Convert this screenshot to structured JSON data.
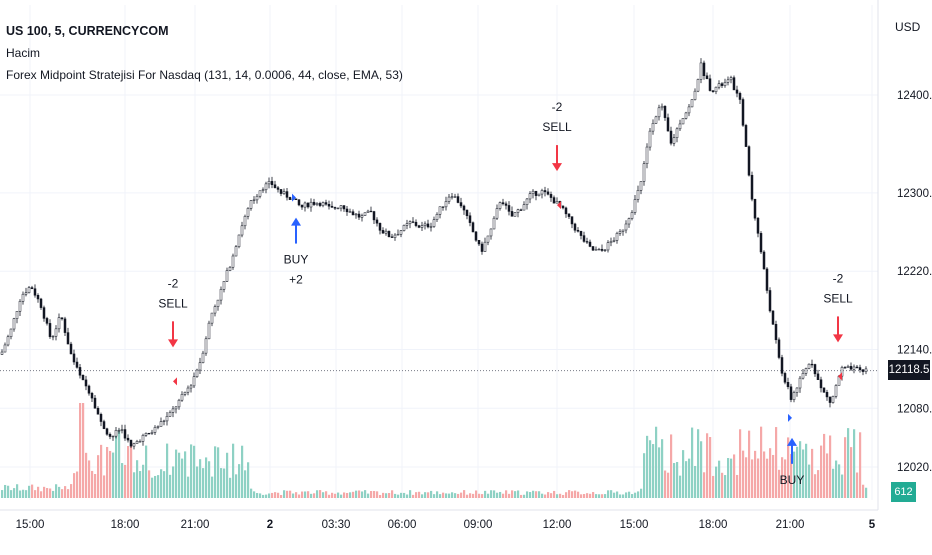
{
  "legend": {
    "symbol": "US 100, 5, CURRENCYCOM",
    "volume_label": "Hacim",
    "strategy": "Forex Midpoint Stratejisi For Nasdaq",
    "strategy_params": "(131, 14, 0.0006, 44, close, EMA, 53)"
  },
  "price_axis": {
    "currency": "USD"
  },
  "current_price": "12118.5",
  "current_volume": "612",
  "colors": {
    "buy_arrow": "#2962ff",
    "sell_arrow": "#f23645",
    "volume_up": "#8ed1c4",
    "volume_down": "#f5a8a8",
    "price_line": "#787b86",
    "candle": "#131722"
  },
  "chart_data": {
    "type": "candlestick",
    "title": "US 100, 5, CURRENCYCOM",
    "ylim": [
      11990,
      12460
    ],
    "y_ticks": [
      12020.0,
      12080.0,
      12140.0,
      12220.0,
      12300.0,
      12400.0
    ],
    "y_tick_labels": [
      "12020.0",
      "12080.0",
      "12140.0",
      "12220.0",
      "12300.0",
      "12400.0"
    ],
    "x_ticks": [
      {
        "label": "15:00",
        "bold": false
      },
      {
        "label": "18:00",
        "bold": false
      },
      {
        "label": "21:00",
        "bold": false
      },
      {
        "label": "2",
        "bold": true
      },
      {
        "label": "03:30",
        "bold": false
      },
      {
        "label": "06:00",
        "bold": false
      },
      {
        "label": "09:00",
        "bold": false
      },
      {
        "label": "12:00",
        "bold": false
      },
      {
        "label": "15:00",
        "bold": false
      },
      {
        "label": "18:00",
        "bold": false
      },
      {
        "label": "21:00",
        "bold": false
      },
      {
        "label": "5",
        "bold": true
      }
    ],
    "price_path": [
      [
        0,
        12135
      ],
      [
        10,
        12160
      ],
      [
        20,
        12195
      ],
      [
        30,
        12205
      ],
      [
        40,
        12185
      ],
      [
        50,
        12150
      ],
      [
        60,
        12175
      ],
      [
        70,
        12135
      ],
      [
        80,
        12110
      ],
      [
        90,
        12095
      ],
      [
        100,
        12065
      ],
      [
        110,
        12050
      ],
      [
        120,
        12060
      ],
      [
        130,
        12040
      ],
      [
        140,
        12050
      ],
      [
        150,
        12055
      ],
      [
        160,
        12065
      ],
      [
        170,
        12075
      ],
      [
        180,
        12090
      ],
      [
        190,
        12105
      ],
      [
        200,
        12130
      ],
      [
        210,
        12175
      ],
      [
        220,
        12200
      ],
      [
        230,
        12230
      ],
      [
        240,
        12265
      ],
      [
        250,
        12290
      ],
      [
        260,
        12305
      ],
      [
        270,
        12310
      ],
      [
        280,
        12300
      ],
      [
        290,
        12295
      ],
      [
        300,
        12285
      ],
      [
        310,
        12290
      ],
      [
        320,
        12290
      ],
      [
        330,
        12283
      ],
      [
        340,
        12288
      ],
      [
        350,
        12280
      ],
      [
        360,
        12275
      ],
      [
        370,
        12280
      ],
      [
        380,
        12262
      ],
      [
        390,
        12255
      ],
      [
        400,
        12262
      ],
      [
        410,
        12270
      ],
      [
        420,
        12265
      ],
      [
        430,
        12268
      ],
      [
        440,
        12285
      ],
      [
        450,
        12300
      ],
      [
        460,
        12288
      ],
      [
        470,
        12265
      ],
      [
        480,
        12240
      ],
      [
        490,
        12262
      ],
      [
        500,
        12295
      ],
      [
        510,
        12275
      ],
      [
        520,
        12285
      ],
      [
        530,
        12298
      ],
      [
        540,
        12302
      ],
      [
        550,
        12295
      ],
      [
        560,
        12285
      ],
      [
        570,
        12270
      ],
      [
        580,
        12255
      ],
      [
        590,
        12242
      ],
      [
        600,
        12240
      ],
      [
        610,
        12250
      ],
      [
        620,
        12260
      ],
      [
        630,
        12280
      ],
      [
        640,
        12310
      ],
      [
        650,
        12370
      ],
      [
        660,
        12390
      ],
      [
        670,
        12350
      ],
      [
        680,
        12375
      ],
      [
        690,
        12390
      ],
      [
        700,
        12430
      ],
      [
        710,
        12405
      ],
      [
        720,
        12410
      ],
      [
        730,
        12415
      ],
      [
        740,
        12390
      ],
      [
        750,
        12300
      ],
      [
        760,
        12240
      ],
      [
        770,
        12175
      ],
      [
        780,
        12120
      ],
      [
        790,
        12090
      ],
      [
        800,
        12110
      ],
      [
        810,
        12130
      ],
      [
        820,
        12100
      ],
      [
        830,
        12085
      ],
      [
        840,
        12120
      ],
      [
        850,
        12120
      ],
      [
        860,
        12118
      ],
      [
        865,
        12118
      ]
    ],
    "signals": [
      {
        "type": "sell",
        "x": 173,
        "price": 12130,
        "labels": [
          "-2",
          "SELL"
        ]
      },
      {
        "type": "buy",
        "x": 296,
        "price": 12285,
        "labels": [
          "BUY",
          "+2"
        ]
      },
      {
        "type": "sell",
        "x": 557,
        "price": 12310,
        "labels": [
          "-2",
          "SELL"
        ]
      },
      {
        "type": "buy",
        "x": 792,
        "price": 12060,
        "labels": [
          "BUY"
        ]
      },
      {
        "type": "sell",
        "x": 838,
        "price": 12135,
        "labels": [
          "-2",
          "SELL"
        ]
      }
    ]
  }
}
